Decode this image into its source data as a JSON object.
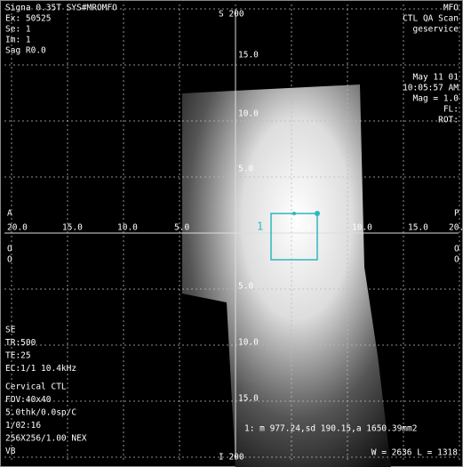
{
  "top_left": [
    "Signa 0.35T SYS#MROMFO",
    "Ex: 50525",
    "Se: 1",
    "Im: 1",
    "Sag R0.0"
  ],
  "top_center": "S 200",
  "top_right": [
    "MFO",
    "CTL QA Scan",
    "geservice",
    "May 11 01",
    "10:05:57 AM",
    "Mag = 1.0",
    "FL:",
    "ROT:"
  ],
  "left_marker": "A",
  "right_marker": "P",
  "side_marks": [
    "O",
    "O"
  ],
  "horizontal_scale": [
    "20.0",
    "15.0",
    "10.0",
    "5.0",
    "5.0",
    "10.0",
    "15.0",
    "20.0"
  ],
  "vertical_scale": [
    "15.0",
    "10.0",
    "5.0",
    "5.0",
    "10.0",
    "15.0"
  ],
  "roi_label": "1",
  "bottom_left": [
    "SE",
    "TR:500",
    "TE:25",
    "EC:1/1 10.4kHz",
    "Cervical CTL",
    "FOV:40x40",
    "5.0thk/0.0sp/C",
    "1/02:16",
    "256X256/1.00 NEX",
    "VB"
  ],
  "bottom_center": "I 200",
  "roi_stats": "1: m 977.24,sd 190.15,a 1650.39mm2",
  "window_level": "W = 2636 L = 1318"
}
